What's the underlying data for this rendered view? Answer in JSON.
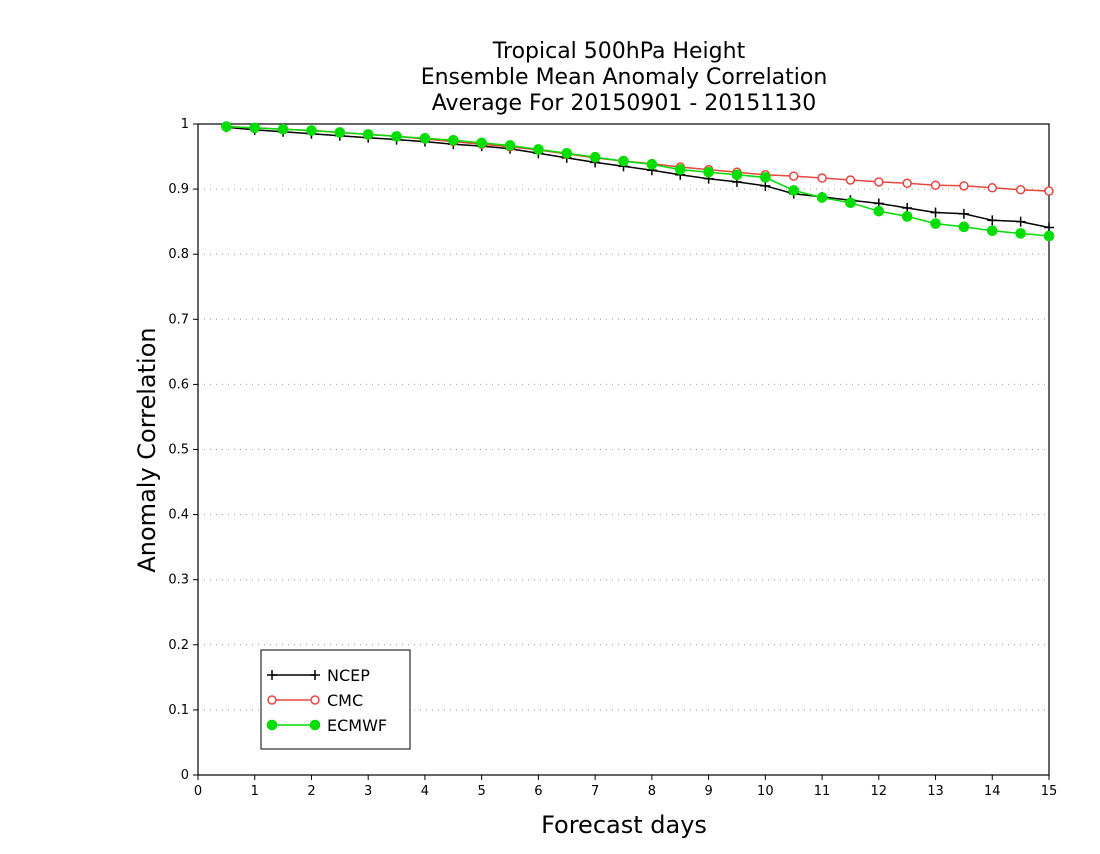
{
  "chart_data": {
    "type": "line",
    "title": [
      "Tropical 500hPa Height",
      "Ensemble Mean Anomaly Correlation",
      "Average For 20150901 - 20151130"
    ],
    "xlabel": "Forecast days",
    "ylabel": "Anomaly Correlation",
    "xlim": [
      0,
      15
    ],
    "ylim": [
      0,
      1
    ],
    "x_ticks": [
      0,
      1,
      2,
      3,
      4,
      5,
      6,
      7,
      8,
      9,
      10,
      11,
      12,
      13,
      14,
      15
    ],
    "y_ticks": [
      0,
      0.1,
      0.2,
      0.3,
      0.4,
      0.5,
      0.6,
      0.7,
      0.8,
      0.9,
      1
    ],
    "y_tick_labels": [
      "0",
      "0.1",
      "0.2",
      "0.3",
      "0.4",
      "0.5",
      "0.6",
      "0.7",
      "0.8",
      "0.9",
      "1"
    ],
    "grid": "horizontal dotted",
    "legend_position": "bottom-left",
    "x": [
      0.5,
      1,
      1.5,
      2,
      2.5,
      3,
      3.5,
      4,
      4.5,
      5,
      5.5,
      6,
      6.5,
      7,
      7.5,
      8,
      8.5,
      9,
      9.5,
      10,
      10.5,
      11,
      11.5,
      12,
      12.5,
      13,
      13.5,
      14,
      14.5,
      15
    ],
    "series": [
      {
        "name": "NCEP",
        "color": "#000000",
        "marker": "plus",
        "values": [
          0.995,
          0.991,
          0.988,
          0.985,
          0.982,
          0.979,
          0.976,
          0.973,
          0.969,
          0.966,
          0.962,
          0.955,
          0.948,
          0.941,
          0.935,
          0.929,
          0.922,
          0.916,
          0.911,
          0.905,
          0.893,
          0.888,
          0.883,
          0.878,
          0.871,
          0.864,
          0.862,
          0.852,
          0.85,
          0.841
        ]
      },
      {
        "name": "CMC",
        "color": "#e8473f",
        "marker": "open-circle",
        "values": [
          0.996,
          0.994,
          0.992,
          0.99,
          0.987,
          0.984,
          0.981,
          0.977,
          0.973,
          0.969,
          0.965,
          0.96,
          0.954,
          0.948,
          0.943,
          0.939,
          0.934,
          0.93,
          0.926,
          0.922,
          0.92,
          0.917,
          0.914,
          0.911,
          0.909,
          0.906,
          0.905,
          0.902,
          0.899,
          0.897
        ]
      },
      {
        "name": "ECMWF",
        "color": "#00dd00",
        "marker": "filled-circle",
        "values": [
          0.996,
          0.994,
          0.992,
          0.99,
          0.987,
          0.984,
          0.981,
          0.978,
          0.975,
          0.971,
          0.967,
          0.961,
          0.955,
          0.949,
          0.943,
          0.938,
          0.93,
          0.926,
          0.922,
          0.918,
          0.898,
          0.887,
          0.879,
          0.866,
          0.858,
          0.847,
          0.842,
          0.836,
          0.832,
          0.828
        ]
      }
    ]
  }
}
